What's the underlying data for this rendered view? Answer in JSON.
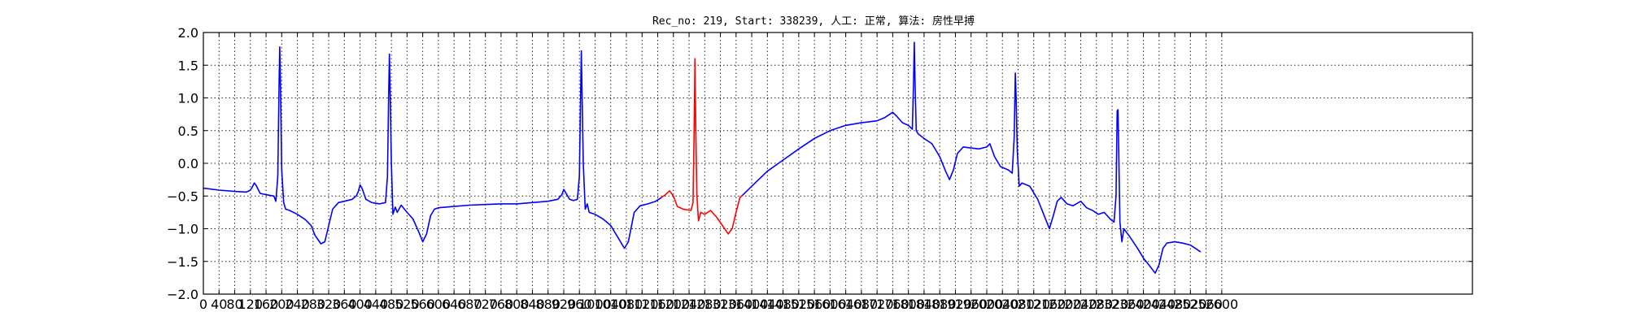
{
  "chart_data": {
    "type": "line",
    "title": "Rec_no: 219, Start: 338239, 人工: 正常, 算法: 房性早搏",
    "xlabel": "",
    "ylabel": "",
    "xlim": [
      0,
      3240
    ],
    "ylim": [
      -2.0,
      2.0
    ],
    "grid": true,
    "y_ticks": [
      -2.0,
      -1.5,
      -1.0,
      -0.5,
      0.0,
      0.5,
      1.0,
      1.5,
      2.0
    ],
    "y_tick_labels": [
      "−2.0",
      "−1.5",
      "−1.0",
      "−0.5",
      "0.0",
      "0.5",
      "1.0",
      "1.5",
      "2.0"
    ],
    "x_ticks": [
      0,
      40,
      80,
      120,
      160,
      200,
      240,
      280,
      320,
      360,
      400,
      440,
      480,
      520,
      560,
      600,
      640,
      680,
      720,
      760,
      800,
      840,
      880,
      920,
      960,
      1000,
      1040,
      1080,
      1120,
      1160,
      1200,
      1240,
      1280,
      1320,
      1360,
      1400,
      1440,
      1480,
      1520,
      1560,
      1600,
      1640,
      1680,
      1720,
      1760,
      1800,
      1840,
      1880,
      1920,
      1960,
      2000,
      2040,
      2080,
      2120,
      2160,
      2200,
      2240,
      2280,
      2320,
      2360,
      2400,
      2440,
      2480,
      2520,
      2560,
      2600
    ],
    "x_tick_labels": [
      "0",
      "40",
      "80",
      "120",
      "160",
      "200",
      "240",
      "280",
      "320",
      "360",
      "400",
      "440",
      "480",
      "520",
      "560",
      "600",
      "640",
      "680",
      "720",
      "760",
      "800",
      "840",
      "880",
      "920",
      "960",
      "1000",
      "1040",
      "1080",
      "1120",
      "1160",
      "1200",
      "1240",
      "1280",
      "1320",
      "1360",
      "1400",
      "1440",
      "1480",
      "1520",
      "1560",
      "1600",
      "1640",
      "1680",
      "1720",
      "1760",
      "1800",
      "1840",
      "1880",
      "1920",
      "1960",
      "2000",
      "2040",
      "2080",
      "2120",
      "2160",
      "2200",
      "2240",
      "2280",
      "2320",
      "2360",
      "2400",
      "2440",
      "2480",
      "2520",
      "2560",
      "2600"
    ],
    "series": [
      {
        "color": "#0000ff",
        "points": [
          [
            0,
            -0.38
          ],
          [
            40,
            -0.41
          ],
          [
            80,
            -0.43
          ],
          [
            110,
            -0.44
          ],
          [
            120,
            -0.41
          ],
          [
            125,
            -0.36
          ],
          [
            130,
            -0.3
          ],
          [
            135,
            -0.34
          ],
          [
            145,
            -0.46
          ],
          [
            160,
            -0.48
          ],
          [
            180,
            -0.5
          ],
          [
            185,
            -0.58
          ],
          [
            190,
            -0.2
          ],
          [
            193,
            1.1
          ],
          [
            195,
            1.78
          ],
          [
            197,
            1.1
          ],
          [
            200,
            -0.1
          ],
          [
            205,
            -0.6
          ],
          [
            210,
            -0.7
          ],
          [
            220,
            -0.72
          ],
          [
            240,
            -0.78
          ],
          [
            260,
            -0.86
          ],
          [
            275,
            -0.95
          ],
          [
            285,
            -1.1
          ],
          [
            300,
            -1.23
          ],
          [
            310,
            -1.2
          ],
          [
            318,
            -1.0
          ],
          [
            330,
            -0.7
          ],
          [
            345,
            -0.6
          ],
          [
            360,
            -0.58
          ],
          [
            380,
            -0.55
          ],
          [
            390,
            -0.5
          ],
          [
            395,
            -0.44
          ],
          [
            400,
            -0.33
          ],
          [
            405,
            -0.38
          ],
          [
            415,
            -0.55
          ],
          [
            430,
            -0.6
          ],
          [
            450,
            -0.62
          ],
          [
            465,
            -0.6
          ],
          [
            470,
            -0.2
          ],
          [
            473,
            1.0
          ],
          [
            475,
            1.67
          ],
          [
            477,
            1.0
          ],
          [
            480,
            0.0
          ],
          [
            484,
            -0.78
          ],
          [
            490,
            -0.67
          ],
          [
            495,
            -0.75
          ],
          [
            505,
            -0.64
          ],
          [
            520,
            -0.75
          ],
          [
            535,
            -0.85
          ],
          [
            550,
            -1.05
          ],
          [
            560,
            -1.2
          ],
          [
            570,
            -1.08
          ],
          [
            580,
            -0.8
          ],
          [
            590,
            -0.7
          ],
          [
            600,
            -0.68
          ],
          [
            640,
            -0.66
          ],
          [
            680,
            -0.64
          ],
          [
            720,
            -0.63
          ],
          [
            760,
            -0.62
          ],
          [
            800,
            -0.62
          ],
          [
            840,
            -0.6
          ],
          [
            880,
            -0.58
          ],
          [
            905,
            -0.55
          ],
          [
            915,
            -0.48
          ],
          [
            920,
            -0.4
          ],
          [
            925,
            -0.45
          ],
          [
            935,
            -0.55
          ],
          [
            945,
            -0.57
          ],
          [
            955,
            -0.55
          ],
          [
            960,
            -0.2
          ],
          [
            963,
            1.0
          ],
          [
            965,
            1.72
          ],
          [
            967,
            1.0
          ],
          [
            970,
            0.0
          ],
          [
            975,
            -0.7
          ],
          [
            980,
            -0.62
          ],
          [
            985,
            -0.75
          ],
          [
            1000,
            -0.78
          ],
          [
            1020,
            -0.85
          ],
          [
            1040,
            -0.95
          ],
          [
            1060,
            -1.15
          ],
          [
            1075,
            -1.3
          ],
          [
            1085,
            -1.2
          ],
          [
            1095,
            -0.9
          ],
          [
            1100,
            -0.75
          ],
          [
            1115,
            -0.65
          ],
          [
            1135,
            -0.62
          ],
          [
            1155,
            -0.58
          ],
          [
            1170,
            -0.52
          ]
        ]
      },
      {
        "color": "#ff0000",
        "points": [
          [
            1170,
            -0.52
          ],
          [
            1180,
            -0.48
          ],
          [
            1190,
            -0.42
          ],
          [
            1200,
            -0.5
          ],
          [
            1210,
            -0.66
          ],
          [
            1225,
            -0.7
          ],
          [
            1245,
            -0.72
          ],
          [
            1250,
            -0.6
          ],
          [
            1253,
            0.5
          ],
          [
            1255,
            1.6
          ],
          [
            1257,
            0.6
          ],
          [
            1260,
            -0.5
          ],
          [
            1264,
            -0.88
          ],
          [
            1270,
            -0.75
          ],
          [
            1280,
            -0.78
          ],
          [
            1295,
            -0.72
          ],
          [
            1310,
            -0.82
          ],
          [
            1325,
            -0.95
          ],
          [
            1340,
            -1.08
          ],
          [
            1350,
            -1.0
          ],
          [
            1360,
            -0.75
          ],
          [
            1370,
            -0.52
          ],
          [
            1378,
            -0.48
          ]
        ]
      },
      {
        "color": "#0000ff",
        "points": [
          [
            1378,
            -0.48
          ],
          [
            1400,
            -0.35
          ],
          [
            1440,
            -0.12
          ],
          [
            1480,
            0.05
          ],
          [
            1520,
            0.22
          ],
          [
            1560,
            0.38
          ],
          [
            1600,
            0.5
          ],
          [
            1640,
            0.58
          ],
          [
            1680,
            0.62
          ],
          [
            1720,
            0.65
          ],
          [
            1740,
            0.7
          ],
          [
            1760,
            0.78
          ],
          [
            1770,
            0.72
          ],
          [
            1785,
            0.62
          ],
          [
            1800,
            0.58
          ],
          [
            1810,
            0.52
          ],
          [
            1813,
            1.2
          ],
          [
            1815,
            1.85
          ],
          [
            1817,
            1.2
          ],
          [
            1820,
            0.5
          ],
          [
            1825,
            0.45
          ],
          [
            1840,
            0.38
          ],
          [
            1860,
            0.3
          ],
          [
            1880,
            0.1
          ],
          [
            1895,
            -0.12
          ],
          [
            1905,
            -0.25
          ],
          [
            1915,
            -0.1
          ],
          [
            1925,
            0.15
          ],
          [
            1940,
            0.25
          ],
          [
            1980,
            0.22
          ],
          [
            2000,
            0.25
          ],
          [
            2008,
            0.3
          ],
          [
            2020,
            0.1
          ],
          [
            2035,
            -0.05
          ],
          [
            2055,
            -0.1
          ],
          [
            2065,
            -0.15
          ],
          [
            2070,
            0.4
          ],
          [
            2073,
            1.38
          ],
          [
            2075,
            1.0
          ],
          [
            2078,
            0.2
          ],
          [
            2083,
            -0.35
          ],
          [
            2090,
            -0.3
          ],
          [
            2110,
            -0.35
          ],
          [
            2130,
            -0.55
          ],
          [
            2150,
            -0.85
          ],
          [
            2160,
            -1.0
          ],
          [
            2170,
            -0.8
          ],
          [
            2180,
            -0.58
          ],
          [
            2190,
            -0.52
          ],
          [
            2205,
            -0.62
          ],
          [
            2220,
            -0.65
          ],
          [
            2240,
            -0.58
          ],
          [
            2255,
            -0.68
          ],
          [
            2270,
            -0.72
          ],
          [
            2285,
            -0.78
          ],
          [
            2300,
            -0.75
          ],
          [
            2315,
            -0.85
          ],
          [
            2325,
            -0.9
          ],
          [
            2330,
            -0.5
          ],
          [
            2333,
            0.8
          ],
          [
            2335,
            0.82
          ],
          [
            2337,
            0.2
          ],
          [
            2340,
            -0.9
          ],
          [
            2345,
            -1.2
          ],
          [
            2350,
            -1.0
          ],
          [
            2365,
            -1.12
          ],
          [
            2385,
            -1.3
          ],
          [
            2400,
            -1.45
          ],
          [
            2420,
            -1.6
          ],
          [
            2430,
            -1.68
          ],
          [
            2440,
            -1.55
          ],
          [
            2450,
            -1.3
          ],
          [
            2460,
            -1.22
          ],
          [
            2480,
            -1.2
          ],
          [
            2500,
            -1.22
          ],
          [
            2520,
            -1.25
          ],
          [
            2545,
            -1.35
          ]
        ]
      }
    ]
  }
}
